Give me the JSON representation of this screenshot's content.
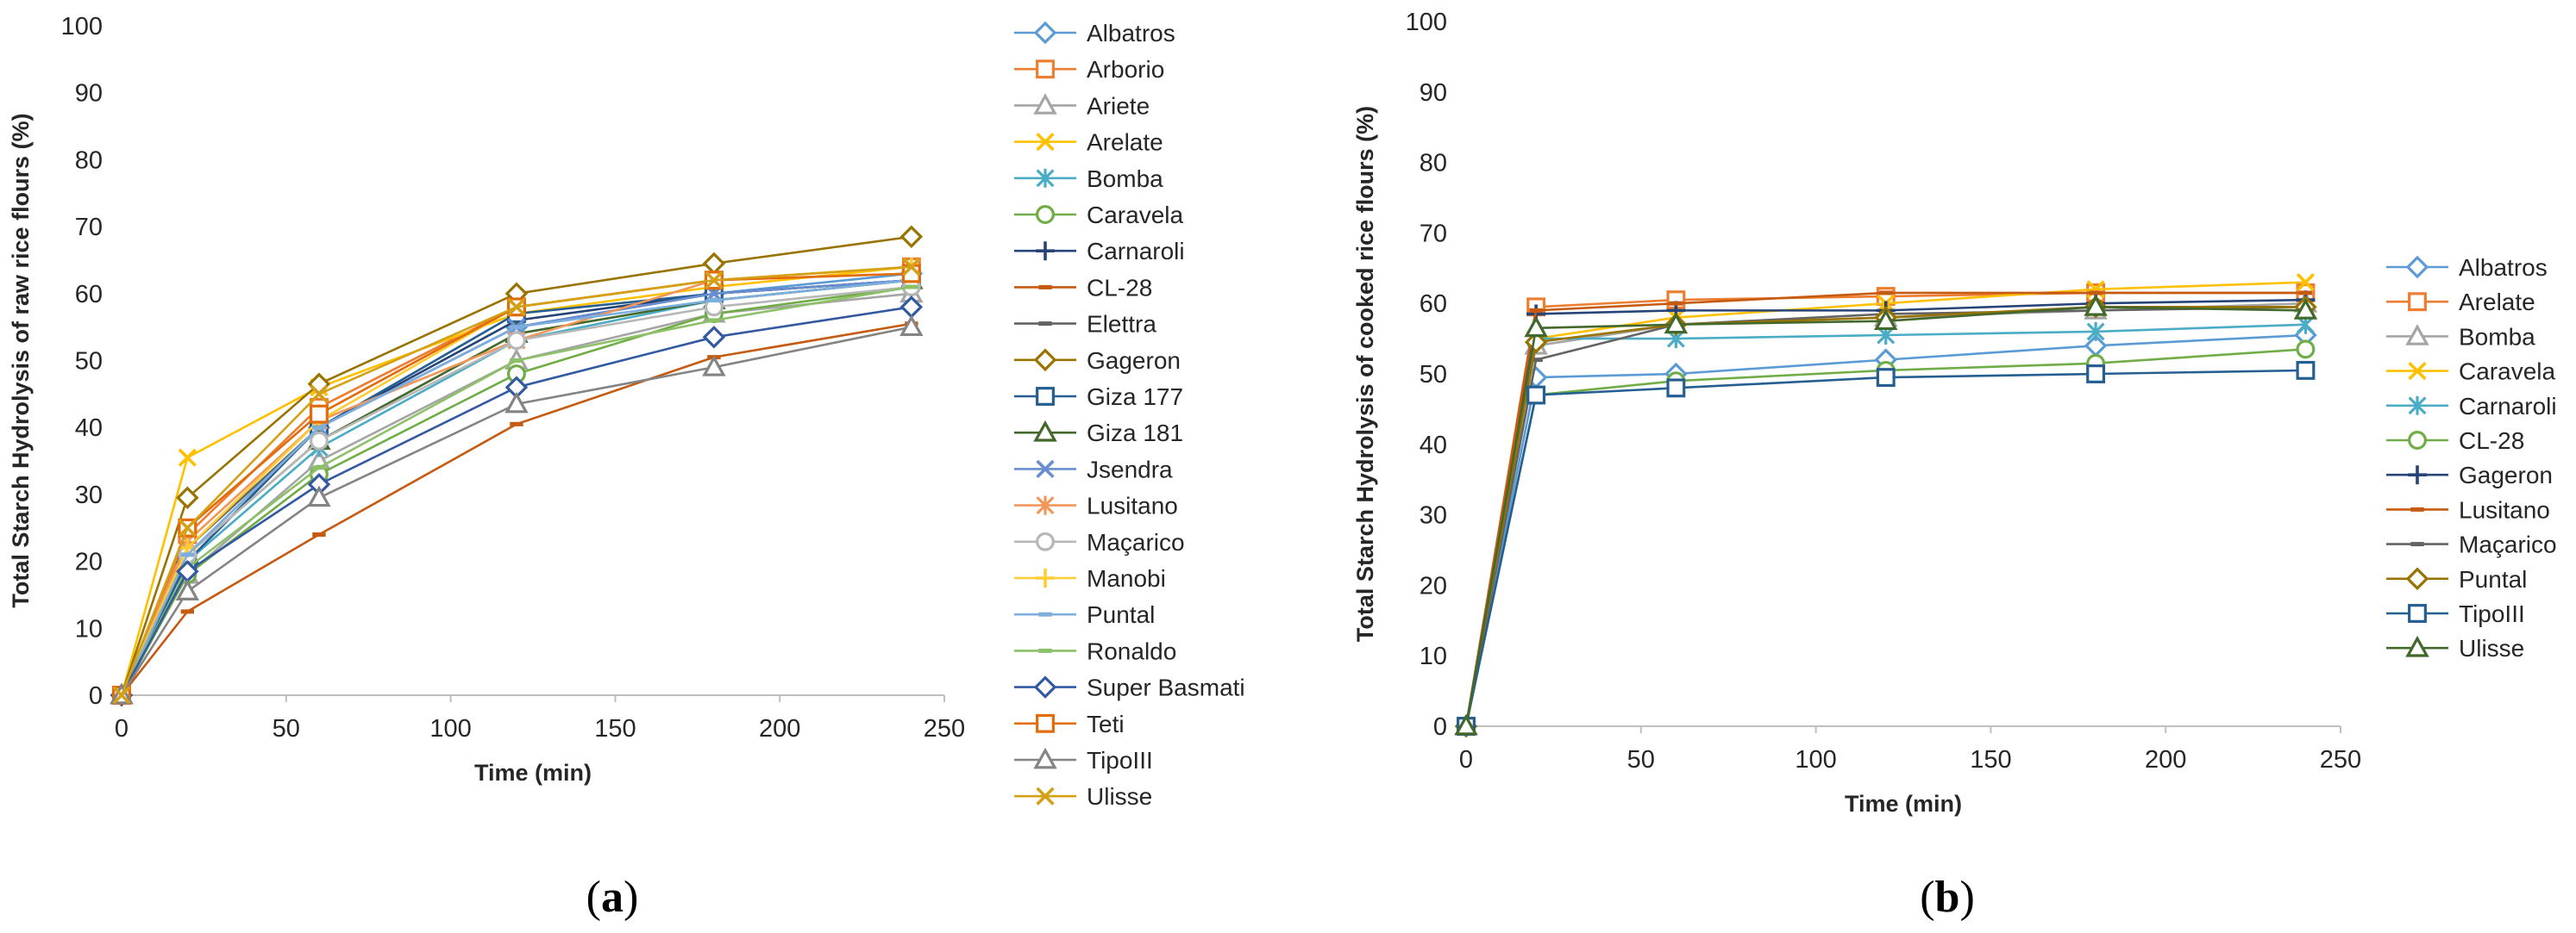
{
  "chart_data": [
    {
      "type": "line",
      "panel_label": "(a)",
      "panel_letter": "a",
      "xlabel": "Time (min)",
      "ylabel": "Total Starch Hydrolysis of raw rice flours (%)",
      "xlim": [
        0,
        250
      ],
      "ylim": [
        0,
        100
      ],
      "x_ticks": [
        0,
        50,
        100,
        150,
        200,
        250
      ],
      "y_ticks": [
        0,
        10,
        20,
        30,
        40,
        50,
        60,
        70,
        80,
        90,
        100
      ],
      "grid": false,
      "legend_position": "right",
      "x": [
        0,
        20,
        60,
        120,
        180,
        240
      ],
      "series": [
        {
          "name": "Albatros",
          "color": "#5B9BD5",
          "marker": "diamond",
          "values": [
            0,
            20,
            40,
            55,
            60,
            63
          ]
        },
        {
          "name": "Arborio",
          "color": "#ED7D31",
          "marker": "square",
          "values": [
            0,
            24,
            43,
            58,
            62,
            64
          ]
        },
        {
          "name": "Ariete",
          "color": "#A5A5A5",
          "marker": "triangle",
          "values": [
            0,
            18,
            35,
            50,
            57,
            60
          ]
        },
        {
          "name": "Arelate",
          "color": "#FFC000",
          "marker": "x",
          "values": [
            0,
            35.5,
            46,
            57,
            61,
            64
          ]
        },
        {
          "name": "Bomba",
          "color": "#4BACC6",
          "marker": "star",
          "values": [
            0,
            20,
            37,
            53,
            59,
            62
          ]
        },
        {
          "name": "Caravela",
          "color": "#70AD47",
          "marker": "circle",
          "values": [
            0,
            18,
            33,
            48,
            57,
            61
          ]
        },
        {
          "name": "Carnaroli",
          "color": "#264478",
          "marker": "plus",
          "values": [
            0,
            21,
            40,
            56,
            60,
            62
          ]
        },
        {
          "name": "CL-28",
          "color": "#C55A11",
          "marker": "dash",
          "values": [
            0,
            12.5,
            24,
            40.5,
            50.5,
            55.5
          ]
        },
        {
          "name": "Elettra",
          "color": "#636363",
          "marker": "dash",
          "values": [
            0,
            22,
            40,
            55,
            60,
            62
          ]
        },
        {
          "name": "Gageron",
          "color": "#997300",
          "marker": "diamond",
          "values": [
            0,
            29.5,
            46.5,
            60,
            64.5,
            68.5
          ]
        },
        {
          "name": "Giza 177",
          "color": "#255E91",
          "marker": "square",
          "values": [
            0,
            20,
            40,
            57,
            60,
            62
          ]
        },
        {
          "name": "Giza 181",
          "color": "#43682B",
          "marker": "triangle",
          "values": [
            0,
            21,
            38,
            54,
            59,
            62
          ]
        },
        {
          "name": "Jsendra",
          "color": "#698ED0",
          "marker": "x",
          "values": [
            0,
            21,
            40,
            55,
            60,
            62
          ]
        },
        {
          "name": "Lusitano",
          "color": "#F1975A",
          "marker": "star",
          "values": [
            0,
            23,
            41,
            53,
            62,
            63
          ]
        },
        {
          "name": "Maçarico",
          "color": "#B7B7B7",
          "marker": "circle",
          "values": [
            0,
            21,
            38,
            53,
            58,
            61
          ]
        },
        {
          "name": "Manobi",
          "color": "#FFCD33",
          "marker": "plus",
          "values": [
            0,
            22,
            41,
            58,
            62,
            64
          ]
        },
        {
          "name": "Puntal",
          "color": "#7CAFDD",
          "marker": "dash",
          "values": [
            0,
            21,
            40,
            55,
            59,
            62
          ]
        },
        {
          "name": "Ronaldo",
          "color": "#8CC168",
          "marker": "dash",
          "values": [
            0,
            19,
            34,
            50,
            56,
            61
          ]
        },
        {
          "name": "Super Basmati",
          "color": "#335AA1",
          "marker": "diamond",
          "values": [
            0,
            18.5,
            31.5,
            46,
            53.5,
            58
          ]
        },
        {
          "name": "Teti",
          "color": "#E36C0A",
          "marker": "square",
          "values": [
            0,
            25,
            42,
            58,
            62,
            63
          ]
        },
        {
          "name": "TipoIII",
          "color": "#848484",
          "marker": "triangle",
          "values": [
            0,
            15.5,
            29.5,
            43.5,
            49,
            55
          ]
        },
        {
          "name": "Ulisse",
          "color": "#D4A017",
          "marker": "x",
          "values": [
            0,
            25,
            45,
            58,
            62,
            64
          ]
        }
      ]
    },
    {
      "type": "line",
      "panel_label": "(b)",
      "panel_letter": "b",
      "xlabel": "Time (min)",
      "ylabel": "Total Starch Hydrolysis of cooked rice flours (%)",
      "xlim": [
        0,
        250
      ],
      "ylim": [
        0,
        100
      ],
      "x_ticks": [
        0,
        50,
        100,
        150,
        200,
        250
      ],
      "y_ticks": [
        0,
        10,
        20,
        30,
        40,
        50,
        60,
        70,
        80,
        90,
        100
      ],
      "grid": false,
      "legend_position": "right",
      "x": [
        0,
        20,
        60,
        120,
        180,
        240
      ],
      "series": [
        {
          "name": "Albatros",
          "color": "#5B9BD5",
          "marker": "diamond",
          "values": [
            0,
            49.5,
            50,
            52,
            54,
            55.5
          ]
        },
        {
          "name": "Arelate",
          "color": "#ED7D31",
          "marker": "square",
          "values": [
            0,
            59.5,
            60.5,
            61,
            61.5,
            61.5
          ]
        },
        {
          "name": "Bomba",
          "color": "#A5A5A5",
          "marker": "triangle",
          "values": [
            0,
            54,
            57,
            58,
            59,
            60
          ]
        },
        {
          "name": "Caravela",
          "color": "#FFC000",
          "marker": "x",
          "values": [
            0,
            55,
            58,
            60,
            62,
            63
          ]
        },
        {
          "name": "Carnaroli",
          "color": "#4BACC6",
          "marker": "star",
          "values": [
            0,
            55,
            55,
            55.5,
            56,
            57
          ]
        },
        {
          "name": "CL-28",
          "color": "#70AD47",
          "marker": "circle",
          "values": [
            0,
            47,
            49,
            50.5,
            51.5,
            53.5
          ]
        },
        {
          "name": "Gageron",
          "color": "#264478",
          "marker": "plus",
          "values": [
            0,
            58.5,
            59,
            59,
            60,
            60.5
          ]
        },
        {
          "name": "Lusitano",
          "color": "#C55A11",
          "marker": "dash",
          "values": [
            0,
            59,
            60,
            61.5,
            61.5,
            61.5
          ]
        },
        {
          "name": "Maçarico",
          "color": "#636363",
          "marker": "dash",
          "values": [
            0,
            52,
            57,
            58.5,
            59,
            59.5
          ]
        },
        {
          "name": "Puntal",
          "color": "#997300",
          "marker": "diamond",
          "values": [
            0,
            54.5,
            57,
            58,
            59.5,
            59.5
          ]
        },
        {
          "name": "TipoIII",
          "color": "#255E91",
          "marker": "square",
          "values": [
            0,
            47,
            48,
            49.5,
            50,
            50.5
          ]
        },
        {
          "name": "Ulisse",
          "color": "#43682B",
          "marker": "triangle",
          "values": [
            0,
            56.5,
            57,
            57.5,
            59.5,
            59
          ]
        }
      ]
    }
  ]
}
